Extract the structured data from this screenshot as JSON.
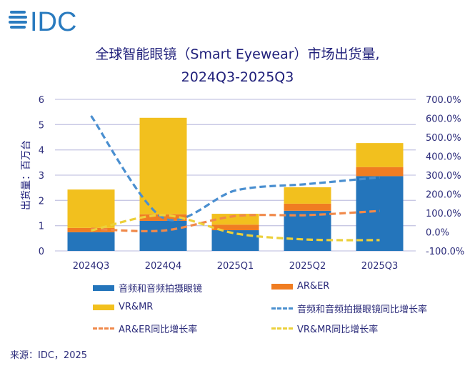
{
  "logo": {
    "text": "IDC",
    "color": "#2a7bbf"
  },
  "title": {
    "line1": "全球智能眼镜（Smart Eyewear）市场出货量,",
    "line2": "2024Q3-2025Q3"
  },
  "source": "来源：IDC，2025",
  "chart_data": {
    "type": "bar",
    "stacked": true,
    "title": "全球智能眼镜（Smart Eyewear）市场出货量, 2024Q3-2025Q3",
    "categories": [
      "2024Q3",
      "2024Q4",
      "2025Q1",
      "2025Q2",
      "2025Q3"
    ],
    "ylabel": "出货量：百万台",
    "ylim": [
      0,
      6
    ],
    "yticks": [
      "0",
      "1",
      "2",
      "3",
      "4",
      "5",
      "6"
    ],
    "y2lim": [
      -100,
      700
    ],
    "y2ticks": [
      "-100.0%",
      "0.0%",
      "100.0%",
      "200.0%",
      "300.0%",
      "400.0%",
      "500.0%",
      "600.0%",
      "700.0%"
    ],
    "grid": true,
    "legend_position": "bottom",
    "series": [
      {
        "name": "音频和音频拍摄眼镜",
        "kind": "bar",
        "color": "#2475bb",
        "values": [
          0.74,
          1.19,
          0.82,
          1.59,
          2.96
        ]
      },
      {
        "name": "AR&ER",
        "kind": "bar",
        "color": "#f07d22",
        "values": [
          0.17,
          0.26,
          0.22,
          0.28,
          0.36
        ]
      },
      {
        "name": "VR&MR",
        "kind": "bar",
        "color": "#f2c01e",
        "values": [
          1.52,
          3.82,
          0.43,
          0.65,
          0.95
        ]
      },
      {
        "name": "音频和音频拍摄眼镜同比增长率",
        "kind": "line",
        "axis": "right",
        "color": "#4a8fd0",
        "values": [
          613,
          74,
          219,
          253,
          288
        ]
      },
      {
        "name": "AR&ER同比增长率",
        "kind": "line",
        "axis": "right",
        "color": "#f0894a",
        "values": [
          17,
          7,
          84,
          89,
          111
        ]
      },
      {
        "name": "VR&MR同比增长率",
        "kind": "line",
        "axis": "right",
        "color": "#ecd03a",
        "values": [
          8,
          89,
          -8,
          -40,
          -43
        ]
      }
    ]
  }
}
